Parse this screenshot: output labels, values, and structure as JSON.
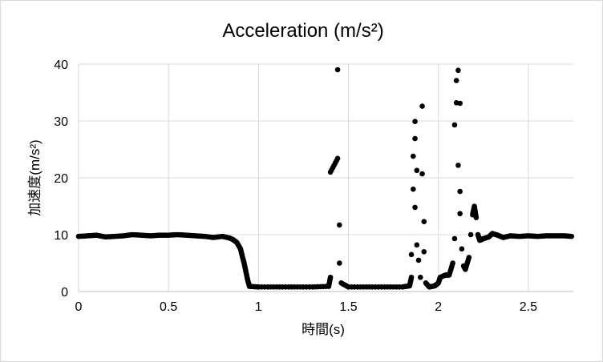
{
  "chart_data": {
    "type": "scatter",
    "title": "Acceleration (m/s²)",
    "xlabel": "時間(s)",
    "ylabel": "加速度(m/s²)",
    "xlim": [
      0,
      2.75
    ],
    "ylim": [
      0,
      40
    ],
    "xticks": [
      "0",
      "0.5",
      "1",
      "1.5",
      "2",
      "2.5"
    ],
    "yticks": [
      "0",
      "10",
      "20",
      "30",
      "40"
    ],
    "grid": true,
    "legend": "none",
    "marker_color": "#000000",
    "series": [
      {
        "points": [
          [
            0.0,
            9.7
          ],
          [
            0.05,
            9.8
          ],
          [
            0.1,
            9.9
          ],
          [
            0.15,
            9.6
          ],
          [
            0.2,
            9.7
          ],
          [
            0.25,
            9.8
          ],
          [
            0.3,
            10.0
          ],
          [
            0.35,
            9.9
          ],
          [
            0.4,
            9.8
          ],
          [
            0.45,
            9.9
          ],
          [
            0.5,
            9.9
          ],
          [
            0.55,
            10.0
          ],
          [
            0.6,
            9.9
          ],
          [
            0.65,
            9.8
          ],
          [
            0.7,
            9.7
          ],
          [
            0.75,
            9.5
          ],
          [
            0.8,
            9.7
          ],
          [
            0.84,
            9.4
          ],
          [
            0.86,
            9.1
          ],
          [
            0.88,
            8.6
          ],
          [
            0.9,
            7.5
          ],
          [
            0.91,
            6.2
          ],
          [
            0.92,
            5.0
          ],
          [
            0.93,
            3.5
          ],
          [
            0.94,
            2.0
          ],
          [
            0.95,
            0.9
          ],
          [
            1.0,
            0.8
          ],
          [
            1.1,
            0.8
          ],
          [
            1.2,
            0.8
          ],
          [
            1.3,
            0.8
          ],
          [
            1.39,
            0.9
          ],
          [
            1.4,
            2.5
          ],
          [
            1.4,
            21.0
          ],
          [
            1.44,
            23.4
          ],
          [
            1.44,
            39.0
          ],
          [
            1.45,
            11.7
          ],
          [
            1.45,
            5.0
          ],
          [
            1.46,
            1.5
          ],
          [
            1.5,
            0.8
          ],
          [
            1.6,
            0.8
          ],
          [
            1.7,
            0.8
          ],
          [
            1.8,
            0.8
          ],
          [
            1.84,
            1.0
          ],
          [
            1.85,
            2.5
          ],
          [
            1.85,
            6.5
          ],
          [
            1.86,
            18.0
          ],
          [
            1.86,
            23.8
          ],
          [
            1.87,
            29.9
          ],
          [
            1.87,
            26.9
          ],
          [
            1.87,
            14.8
          ],
          [
            1.88,
            21.3
          ],
          [
            1.88,
            8.2
          ],
          [
            1.89,
            5.5
          ],
          [
            1.9,
            2.5
          ],
          [
            1.91,
            32.6
          ],
          [
            1.91,
            20.7
          ],
          [
            1.92,
            12.3
          ],
          [
            1.92,
            7.0
          ],
          [
            1.93,
            1.5
          ],
          [
            1.95,
            0.8
          ],
          [
            1.98,
            1.0
          ],
          [
            2.0,
            1.5
          ],
          [
            2.01,
            2.5
          ],
          [
            2.04,
            2.9
          ],
          [
            2.06,
            2.9
          ],
          [
            2.08,
            5.0
          ],
          [
            2.09,
            9.3
          ],
          [
            2.09,
            29.3
          ],
          [
            2.1,
            37.1
          ],
          [
            2.1,
            33.2
          ],
          [
            2.11,
            38.9
          ],
          [
            2.11,
            22.2
          ],
          [
            2.12,
            17.6
          ],
          [
            2.12,
            13.7
          ],
          [
            2.12,
            33.1
          ],
          [
            2.13,
            7.5
          ],
          [
            2.14,
            4.5
          ],
          [
            2.15,
            3.9
          ],
          [
            2.17,
            6.0
          ],
          [
            2.18,
            10.0
          ],
          [
            2.19,
            13.5
          ],
          [
            2.2,
            15.0
          ],
          [
            2.21,
            13.0
          ],
          [
            2.22,
            10.0
          ],
          [
            2.23,
            9.0
          ],
          [
            2.25,
            9.3
          ],
          [
            2.28,
            9.6
          ],
          [
            2.3,
            10.2
          ],
          [
            2.33,
            9.9
          ],
          [
            2.36,
            9.5
          ],
          [
            2.4,
            9.8
          ],
          [
            2.45,
            9.7
          ],
          [
            2.5,
            9.8
          ],
          [
            2.55,
            9.7
          ],
          [
            2.6,
            9.8
          ],
          [
            2.65,
            9.8
          ],
          [
            2.7,
            9.8
          ],
          [
            2.74,
            9.7
          ]
        ]
      }
    ]
  }
}
